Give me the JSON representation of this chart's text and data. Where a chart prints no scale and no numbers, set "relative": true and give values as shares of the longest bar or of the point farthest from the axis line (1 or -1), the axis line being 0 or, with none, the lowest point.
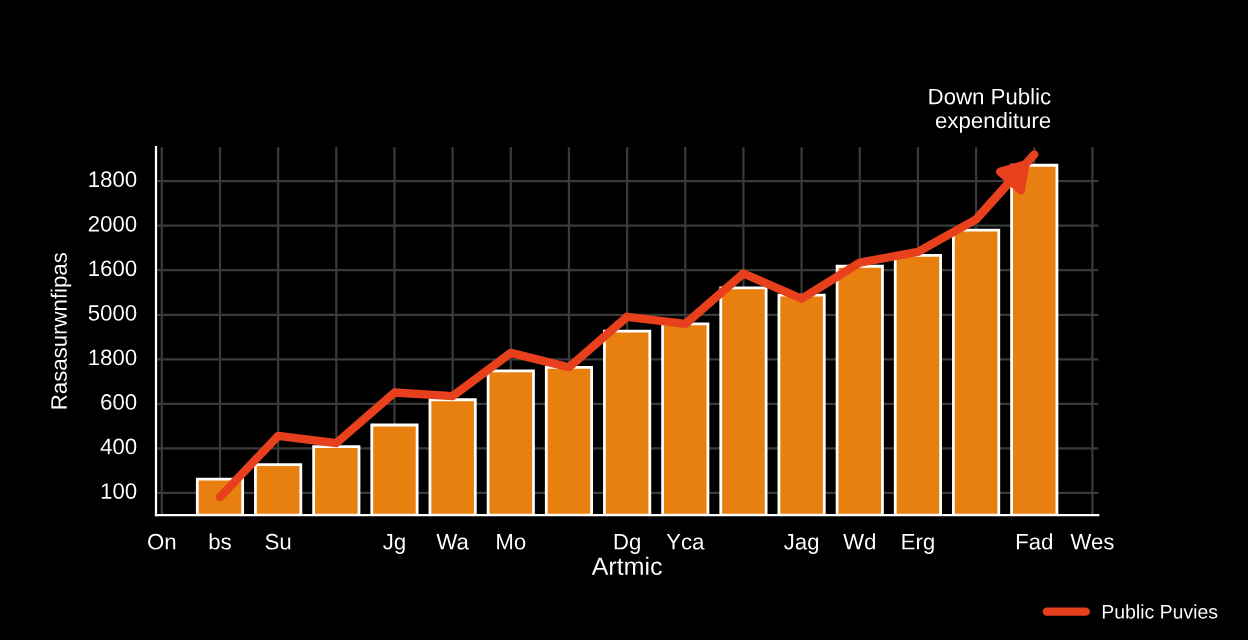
{
  "chart_data": {
    "type": "bar",
    "relative": true,
    "xlabel": "Artmic",
    "ylabel": "Rasasurwnfipas",
    "annotations": [
      "Down Public\nexpenditure",
      "100",
      "400",
      "600",
      "1800",
      "5000",
      "1600",
      "2000",
      "1800"
    ],
    "categories": [
      "On",
      "bs",
      "Su",
      null,
      "Jg",
      "Wa",
      "Mo",
      null,
      "Dg",
      "Yca",
      null,
      "Jag",
      "Wd",
      "Erg",
      null,
      "Fad",
      "Wes"
    ],
    "grid": true,
    "legend": "bottom right",
    "series": [
      {
        "color": "#e8800f",
        "values": [
          null,
          0.1,
          0.14,
          0.19,
          0.25,
          0.32,
          0.4,
          0.41,
          0.51,
          0.53,
          0.63,
          0.61,
          0.69,
          0.72,
          0.79,
          0.97,
          null
        ]
      },
      {
        "type": "line",
        "name": "Public Puvies",
        "color": "#e8401c",
        "marker": "none",
        "line_style": "solid",
        "values": [
          null,
          0.05,
          0.22,
          0.2,
          0.34,
          0.33,
          0.45,
          0.41,
          0.55,
          0.53,
          0.67,
          0.6,
          0.7,
          0.73,
          0.82,
          1,
          null
        ]
      }
    ]
  }
}
